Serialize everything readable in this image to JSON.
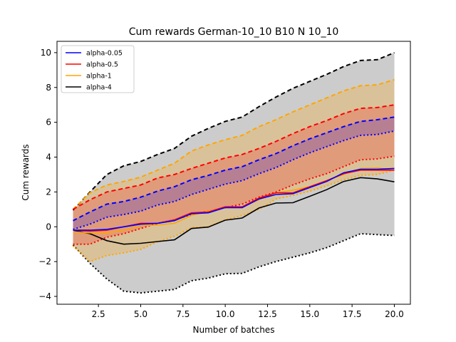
{
  "chart_data": {
    "type": "line",
    "title": "Cum rewards German-10_10 B10 N 10_10",
    "xlabel": "Number of batches",
    "ylabel": "Cum rewards",
    "xlim": [
      0.05,
      20.95
    ],
    "ylim": [
      -4.45,
      10.65
    ],
    "xticks": [
      2.5,
      5.0,
      7.5,
      10.0,
      12.5,
      15.0,
      17.5,
      20.0
    ],
    "xtick_labels": [
      "2.5",
      "5.0",
      "7.5",
      "10.0",
      "12.5",
      "15.0",
      "17.5",
      "20.0"
    ],
    "yticks": [
      -4,
      -2,
      0,
      2,
      4,
      6,
      8,
      10
    ],
    "ytick_labels": [
      "−4",
      "−2",
      "0",
      "2",
      "4",
      "6",
      "8",
      "10"
    ],
    "legend_position": "top-left",
    "grid": false,
    "x": [
      1,
      2,
      3,
      4,
      5,
      6,
      7,
      8,
      9,
      10,
      11,
      12,
      13,
      14,
      15,
      16,
      17,
      18,
      19,
      20
    ],
    "series": [
      {
        "name": "alpha-4",
        "color": "#000000",
        "band_fill": "#cccccc",
        "mean": [
          -0.2,
          -0.4,
          -0.8,
          -1.0,
          -0.95,
          -0.85,
          -0.75,
          -0.1,
          -0.02,
          0.38,
          0.5,
          1.08,
          1.36,
          1.38,
          1.75,
          2.13,
          2.6,
          2.82,
          2.75,
          2.58
        ],
        "upper": [
          0.95,
          2.0,
          3.0,
          3.5,
          3.75,
          4.15,
          4.5,
          5.2,
          5.65,
          6.05,
          6.3,
          6.9,
          7.45,
          7.95,
          8.35,
          8.75,
          9.2,
          9.55,
          9.6,
          10.0
        ],
        "lower": [
          -1.05,
          -2.1,
          -3.0,
          -3.7,
          -3.8,
          -3.7,
          -3.6,
          -3.1,
          -2.95,
          -2.7,
          -2.68,
          -2.3,
          -2.0,
          -1.75,
          -1.5,
          -1.2,
          -0.8,
          -0.4,
          -0.45,
          -0.5
        ]
      },
      {
        "name": "alpha-1",
        "color": "#ffa500",
        "band_fill": "rgba(255,165,0,0.25)",
        "mean": [
          -0.3,
          -0.35,
          -0.35,
          -0.2,
          0.05,
          0.1,
          0.2,
          0.65,
          0.9,
          1.1,
          1.15,
          1.55,
          1.95,
          2.1,
          2.3,
          2.65,
          3.0,
          3.35,
          3.38,
          3.25
        ],
        "upper": [
          1.0,
          1.95,
          2.4,
          2.6,
          2.85,
          3.25,
          3.65,
          4.35,
          4.7,
          5.0,
          5.25,
          5.75,
          6.15,
          6.6,
          7.0,
          7.4,
          7.8,
          8.1,
          8.15,
          8.45
        ],
        "lower": [
          -1.1,
          -2.0,
          -1.65,
          -1.5,
          -1.3,
          -0.85,
          -0.55,
          -0.05,
          0.0,
          0.4,
          0.65,
          1.0,
          1.6,
          1.8,
          2.05,
          2.35,
          2.7,
          2.95,
          3.0,
          3.25
        ]
      },
      {
        "name": "alpha-0.5",
        "color": "#ff0000",
        "band_fill": "rgba(255,0,0,0.20)",
        "mean": [
          -0.2,
          -0.25,
          -0.2,
          0.0,
          0.2,
          0.2,
          0.4,
          0.8,
          0.85,
          1.15,
          1.15,
          1.65,
          1.95,
          1.95,
          2.3,
          2.65,
          3.05,
          3.25,
          3.25,
          3.25
        ],
        "upper": [
          1.0,
          1.55,
          2.0,
          2.2,
          2.4,
          2.8,
          3.0,
          3.35,
          3.65,
          3.95,
          4.15,
          4.5,
          4.9,
          5.35,
          5.75,
          6.1,
          6.5,
          6.8,
          6.85,
          7.0
        ],
        "lower": [
          -1.0,
          -1.0,
          -0.6,
          -0.4,
          -0.1,
          0.2,
          0.4,
          0.7,
          0.9,
          1.1,
          1.3,
          1.7,
          2.0,
          2.4,
          2.75,
          3.05,
          3.45,
          3.85,
          3.9,
          4.05
        ]
      },
      {
        "name": "alpha-0.05",
        "color": "#0000ff",
        "band_fill": "rgba(0,0,255,0.18)",
        "mean": [
          -0.2,
          -0.2,
          -0.15,
          0.0,
          0.15,
          0.2,
          0.35,
          0.75,
          0.8,
          1.1,
          1.1,
          1.6,
          1.85,
          1.9,
          2.25,
          2.6,
          3.1,
          3.3,
          3.3,
          3.35
        ],
        "upper": [
          0.35,
          0.85,
          1.3,
          1.45,
          1.7,
          2.05,
          2.3,
          2.7,
          2.95,
          3.25,
          3.45,
          3.85,
          4.2,
          4.65,
          5.05,
          5.4,
          5.75,
          6.05,
          6.15,
          6.3
        ],
        "lower": [
          -0.15,
          0.15,
          0.55,
          0.7,
          0.9,
          1.25,
          1.45,
          1.85,
          2.15,
          2.45,
          2.65,
          3.05,
          3.4,
          3.85,
          4.25,
          4.6,
          4.95,
          5.25,
          5.3,
          5.5
        ]
      }
    ],
    "legend_order": [
      "alpha-0.05",
      "alpha-0.5",
      "alpha-1",
      "alpha-4"
    ]
  }
}
